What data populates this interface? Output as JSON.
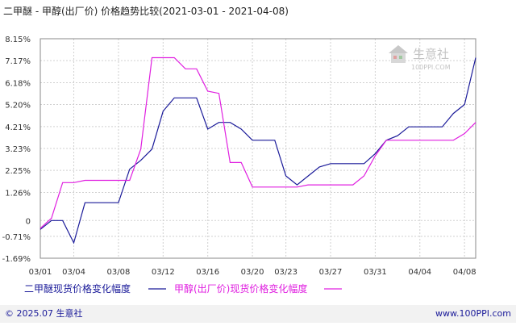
{
  "header": {
    "title": "二甲醚 - 甲醇(出厂价) 价格趋势比较(2021-03-01 - 2021-04-08)"
  },
  "watermark": {
    "brand": "生意社",
    "url": "100PPI.COM"
  },
  "footer": {
    "copyright": "© 2025.07 生意社",
    "site": "www.100PPI.com"
  },
  "colors": {
    "series1": "#1a1a99",
    "series2": "#e020e0",
    "grid": "#d0d0d0",
    "axis": "#000000",
    "footer_bg": "#f2f2f2"
  },
  "chart_data": {
    "type": "line",
    "title": "二甲醚 - 甲醇(出厂价) 价格趋势比较(2021-03-01 - 2021-04-08)",
    "xlabel": "",
    "ylabel": "",
    "x_ticks": [
      "03/01",
      "03/04",
      "03/08",
      "03/12",
      "03/16",
      "03/20",
      "03/23",
      "03/27",
      "03/31",
      "04/04",
      "04/08"
    ],
    "y_ticks": [
      "8.15%",
      "7.17%",
      "6.18%",
      "5.20%",
      "4.21%",
      "3.23%",
      "2.25%",
      "1.26%",
      "0",
      "-0.71%",
      "-1.69%"
    ],
    "ylim": [
      -1.69,
      8.15
    ],
    "grid": true,
    "legend_position": "bottom-left",
    "series": [
      {
        "name": "二甲醚现货价格变化幅度",
        "points": [
          [
            "03/01",
            -0.4
          ],
          [
            "03/02",
            0
          ],
          [
            "03/03",
            0
          ],
          [
            "03/04",
            -1.0
          ],
          [
            "03/05",
            0.8
          ],
          [
            "03/06",
            0.8
          ],
          [
            "03/07",
            0.8
          ],
          [
            "03/08",
            0.8
          ],
          [
            "03/09",
            2.3
          ],
          [
            "03/10",
            2.7
          ],
          [
            "03/11",
            3.2
          ],
          [
            "03/12",
            4.9
          ],
          [
            "03/13",
            5.5
          ],
          [
            "03/14",
            5.5
          ],
          [
            "03/15",
            5.5
          ],
          [
            "03/16",
            4.1
          ],
          [
            "03/17",
            4.4
          ],
          [
            "03/18",
            4.4
          ],
          [
            "03/19",
            4.1
          ],
          [
            "03/20",
            3.6
          ],
          [
            "03/21",
            3.6
          ],
          [
            "03/22",
            3.6
          ],
          [
            "03/23",
            2.0
          ],
          [
            "03/24",
            1.6
          ],
          [
            "03/25",
            2.0
          ],
          [
            "03/26",
            2.4
          ],
          [
            "03/27",
            2.55
          ],
          [
            "03/28",
            2.55
          ],
          [
            "03/29",
            2.55
          ],
          [
            "03/30",
            2.55
          ],
          [
            "03/31",
            3.0
          ],
          [
            "04/01",
            3.6
          ],
          [
            "04/02",
            3.8
          ],
          [
            "04/03",
            4.2
          ],
          [
            "04/04",
            4.2
          ],
          [
            "04/05",
            4.2
          ],
          [
            "04/06",
            4.2
          ],
          [
            "04/07",
            4.8
          ],
          [
            "04/08",
            5.2
          ],
          [
            "04/09",
            7.3
          ]
        ]
      },
      {
        "name": "甲醇(出厂价)现货价格变化幅度",
        "points": [
          [
            "03/01",
            -0.35
          ],
          [
            "03/02",
            0.1
          ],
          [
            "03/03",
            1.7
          ],
          [
            "03/04",
            1.7
          ],
          [
            "03/05",
            1.8
          ],
          [
            "03/06",
            1.8
          ],
          [
            "03/07",
            1.8
          ],
          [
            "03/08",
            1.8
          ],
          [
            "03/09",
            1.8
          ],
          [
            "03/10",
            3.2
          ],
          [
            "03/11",
            7.3
          ],
          [
            "03/12",
            7.3
          ],
          [
            "03/13",
            7.3
          ],
          [
            "03/14",
            6.8
          ],
          [
            "03/15",
            6.8
          ],
          [
            "03/16",
            5.8
          ],
          [
            "03/17",
            5.7
          ],
          [
            "03/18",
            2.6
          ],
          [
            "03/19",
            2.6
          ],
          [
            "03/20",
            1.5
          ],
          [
            "03/21",
            1.5
          ],
          [
            "03/22",
            1.5
          ],
          [
            "03/23",
            1.5
          ],
          [
            "03/24",
            1.5
          ],
          [
            "03/25",
            1.6
          ],
          [
            "03/26",
            1.6
          ],
          [
            "03/27",
            1.6
          ],
          [
            "03/28",
            1.6
          ],
          [
            "03/29",
            1.6
          ],
          [
            "03/30",
            2.0
          ],
          [
            "03/31",
            2.9
          ],
          [
            "04/01",
            3.6
          ],
          [
            "04/02",
            3.6
          ],
          [
            "04/03",
            3.6
          ],
          [
            "04/04",
            3.6
          ],
          [
            "04/05",
            3.6
          ],
          [
            "04/06",
            3.6
          ],
          [
            "04/07",
            3.6
          ],
          [
            "04/08",
            3.9
          ],
          [
            "04/09",
            4.4
          ],
          [
            "04/10",
            4.4
          ]
        ]
      }
    ]
  }
}
